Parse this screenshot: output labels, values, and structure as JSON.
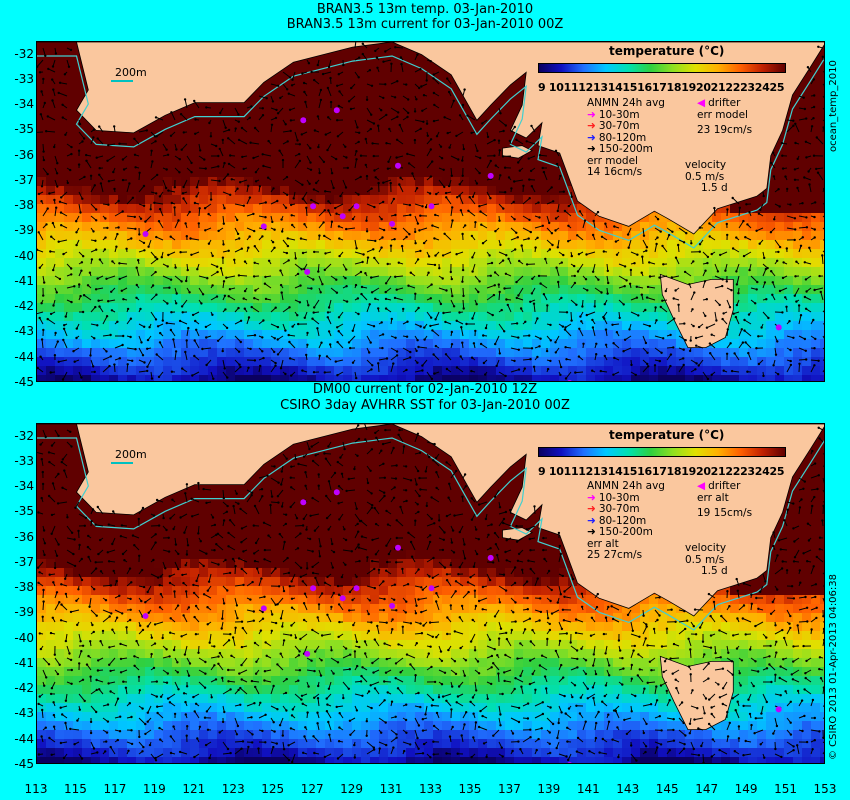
{
  "top_panel": {
    "title_line1": "BRAN3.5 13m temp. 03-Jan-2010",
    "title_line2": "BRAN3.5 13m current for 03-Jan-2010 00Z",
    "legend": {
      "colorbar_title": "temperature (°C)",
      "colorbar_ticks": "9 10111213141516171819202122232425",
      "anmn_title": "ANMN 24h avg",
      "depths": [
        "10-30m",
        "30-70m",
        "80-120m",
        "150-200m"
      ],
      "depth_colors": [
        "#ff00ff",
        "#ff2020",
        "#2020ff",
        "#000000"
      ],
      "err_label": "err model",
      "err_value": "14 16cm/s",
      "drifter_label": "drifter",
      "drifter_err_label": "err model",
      "drifter_err_value": "23 19cm/s",
      "velocity_label": "velocity",
      "velocity_value": "0.5 m/s",
      "velocity_days": "1.5 d",
      "scale_label": "200m"
    },
    "side_text": "ocean_temp_2010"
  },
  "bottom_panel": {
    "title_line1": "DM00 current for 02-Jan-2010 12Z",
    "title_line2": "CSIRO 3day AVHRR SST for 03-Jan-2010 00Z",
    "legend": {
      "colorbar_title": "temperature (°C)",
      "colorbar_ticks": "9 10111213141516171819202122232425",
      "anmn_title": "ANMN 24h avg",
      "depths": [
        "10-30m",
        "30-70m",
        "80-120m",
        "150-200m"
      ],
      "depth_colors": [
        "#ff00ff",
        "#ff2020",
        "#2020ff",
        "#000000"
      ],
      "err_label": "err alt",
      "err_value": "25 27cm/s",
      "drifter_label": "drifter",
      "drifter_err_label": "err alt",
      "drifter_err_value": "19 15cm/s",
      "velocity_label": "velocity",
      "velocity_value": "0.5 m/s",
      "velocity_days": "1.5 d",
      "scale_label": "200m"
    },
    "side_text": "© CSIRO 2013  01-Apr-2013 04:06:38"
  },
  "axes": {
    "y_labels": [
      "-32",
      "-33",
      "-34",
      "-35",
      "-36",
      "-37",
      "-38",
      "-39",
      "-40",
      "-41",
      "-42",
      "-43",
      "-44",
      "-45"
    ],
    "x_labels": [
      "113",
      "115",
      "117",
      "119",
      "121",
      "123",
      "125",
      "127",
      "129",
      "131",
      "133",
      "135",
      "137",
      "139",
      "141",
      "143",
      "145",
      "147",
      "149",
      "151",
      "153"
    ],
    "lon_range": [
      113,
      153
    ],
    "lat_range": [
      -45,
      -31.5
    ]
  },
  "colors": {
    "background": "#00ffff",
    "land": "#fac79e",
    "contour": "#40d0d0"
  }
}
